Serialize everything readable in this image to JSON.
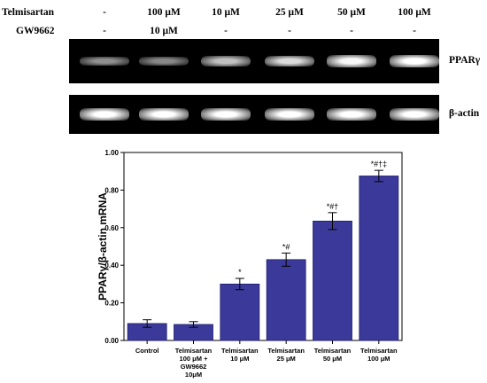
{
  "treatments": {
    "rows": [
      {
        "label": "Telmisartan",
        "values": [
          "-",
          "100 μM",
          "10 μM",
          "25 μM",
          "50 μM",
          "100 μM"
        ]
      },
      {
        "label": "GW9662",
        "values": [
          "-",
          "10 μM",
          "-",
          "-",
          "-",
          "-"
        ]
      }
    ]
  },
  "gels": [
    {
      "label": "PPARγ",
      "band_intensity": [
        0.32,
        0.28,
        0.62,
        0.78,
        0.95,
        1.0
      ]
    },
    {
      "label": "β-actin",
      "band_intensity": [
        1.0,
        1.0,
        1.0,
        1.0,
        1.0,
        1.0
      ]
    }
  ],
  "chart_data": {
    "type": "bar",
    "ylabel": "PPARγ/β-actin mRNA",
    "xlabel": "",
    "ylim": [
      0,
      1.0
    ],
    "yticks": [
      "0.00",
      "0.20",
      "0.40",
      "0.60",
      "0.80",
      "1.00"
    ],
    "categories": [
      [
        "Control"
      ],
      [
        "Telmisartan",
        "100 μM +",
        "GW9662",
        "10μM"
      ],
      [
        "Telmisartan",
        "10 μM"
      ],
      [
        "Telmisartan",
        "25 μM"
      ],
      [
        "Telmisartan",
        "50 μM"
      ],
      [
        "Telmisartan",
        "100 μM"
      ]
    ],
    "values": [
      0.09,
      0.085,
      0.3,
      0.43,
      0.635,
      0.875
    ],
    "errors": [
      0.02,
      0.015,
      0.03,
      0.035,
      0.045,
      0.03
    ],
    "annotations": [
      "",
      "",
      "*",
      "*#",
      "*#†",
      "*#†‡"
    ],
    "bar_color": "#3b3a9a",
    "grid": false
  }
}
